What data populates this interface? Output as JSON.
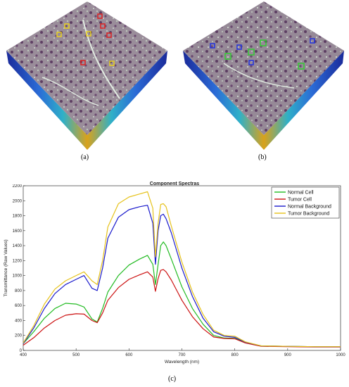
{
  "panels": {
    "a_label": "(a)",
    "b_label": "(b)",
    "c_label": "(c)"
  },
  "colors": {
    "normal_cell": "#22bb22",
    "tumor_cell": "#cc1111",
    "normal_background": "#1a1acc",
    "tumor_background": "#e6c21a",
    "roi_yellow": "#e8d020",
    "roi_red": "#dd2222",
    "roi_green": "#33cc33",
    "roi_blue": "#2233dd"
  },
  "chart_data": {
    "type": "line",
    "title": "Component Spectras",
    "xlabel": "Wavelength (nm)",
    "ylabel": "Transmittance (Raw Values)",
    "xlim": [
      400,
      1000
    ],
    "ylim": [
      0,
      2200
    ],
    "xticks": [
      400,
      500,
      600,
      700,
      800,
      900,
      1000
    ],
    "yticks": [
      0,
      200,
      400,
      600,
      800,
      1000,
      1200,
      1400,
      1600,
      1800,
      2000,
      2200
    ],
    "grid": false,
    "legend_position": "top-right",
    "x": [
      400,
      420,
      440,
      460,
      480,
      500,
      515,
      530,
      540,
      550,
      560,
      580,
      600,
      620,
      635,
      645,
      650,
      655,
      660,
      665,
      670,
      680,
      700,
      720,
      740,
      760,
      780,
      800,
      820,
      850,
      900,
      950,
      1000
    ],
    "series": [
      {
        "name": "Normal Cell",
        "color": "#22bb22",
        "values": [
          90,
          250,
          430,
          560,
          630,
          620,
          580,
          420,
          380,
          560,
          780,
          1000,
          1140,
          1220,
          1270,
          1150,
          880,
          1150,
          1400,
          1450,
          1400,
          1220,
          850,
          560,
          350,
          200,
          165,
          160,
          110,
          60,
          55,
          50,
          50
        ]
      },
      {
        "name": "Tumor Cell",
        "color": "#cc1111",
        "values": [
          70,
          170,
          300,
          400,
          470,
          490,
          485,
          400,
          370,
          500,
          670,
          840,
          950,
          1010,
          1050,
          980,
          790,
          960,
          1070,
          1080,
          1050,
          940,
          670,
          450,
          290,
          180,
          160,
          155,
          100,
          55,
          50,
          45,
          45
        ]
      },
      {
        "name": "Normal Background",
        "color": "#1a1acc",
        "values": [
          90,
          300,
          560,
          760,
          880,
          950,
          1000,
          830,
          800,
          1100,
          1500,
          1780,
          1880,
          1920,
          1940,
          1700,
          1150,
          1600,
          1800,
          1820,
          1760,
          1570,
          1100,
          720,
          430,
          250,
          190,
          175,
          110,
          60,
          55,
          50,
          50
        ]
      },
      {
        "name": "Tumor Background",
        "color": "#e6c21a",
        "values": [
          100,
          330,
          620,
          820,
          930,
          1000,
          1050,
          930,
          880,
          1200,
          1650,
          1960,
          2050,
          2090,
          2120,
          1900,
          1250,
          1700,
          1950,
          1960,
          1920,
          1660,
          1180,
          780,
          480,
          270,
          200,
          190,
          115,
          60,
          55,
          50,
          50
        ]
      }
    ]
  }
}
